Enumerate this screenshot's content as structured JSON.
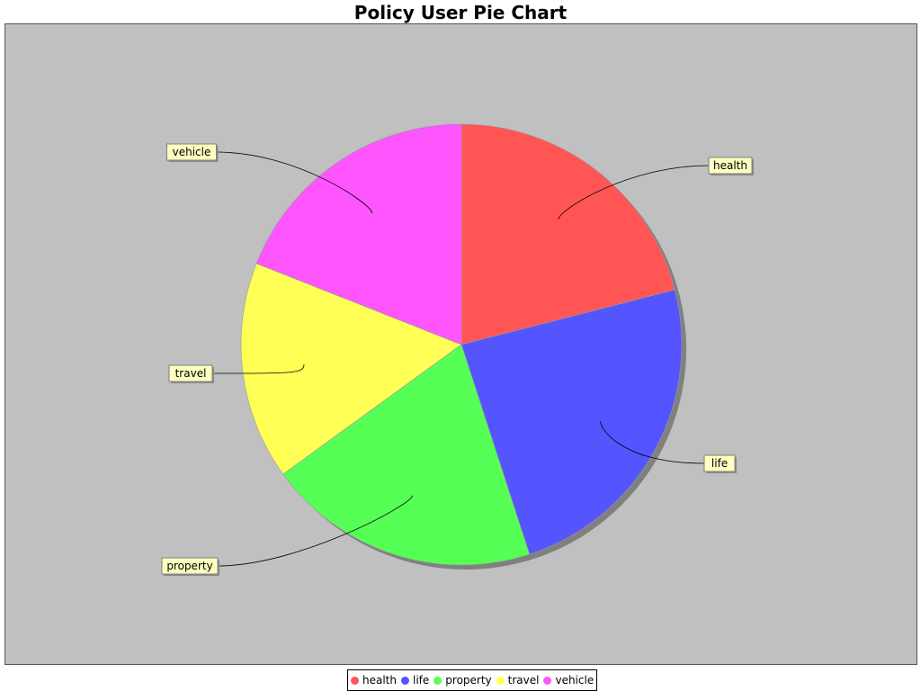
{
  "chart_data": {
    "type": "pie",
    "title": "Policy User Pie Chart",
    "categories": [
      "health",
      "life",
      "property",
      "travel",
      "vehicle"
    ],
    "values": [
      21,
      24,
      20,
      16,
      19
    ],
    "colors": [
      "#ff5555",
      "#5555ff",
      "#55ff55",
      "#ffff55",
      "#ff55ff"
    ],
    "legend_position": "bottom",
    "labels_outside_with_leaders": true,
    "plot_background": "#c0c0c0"
  }
}
